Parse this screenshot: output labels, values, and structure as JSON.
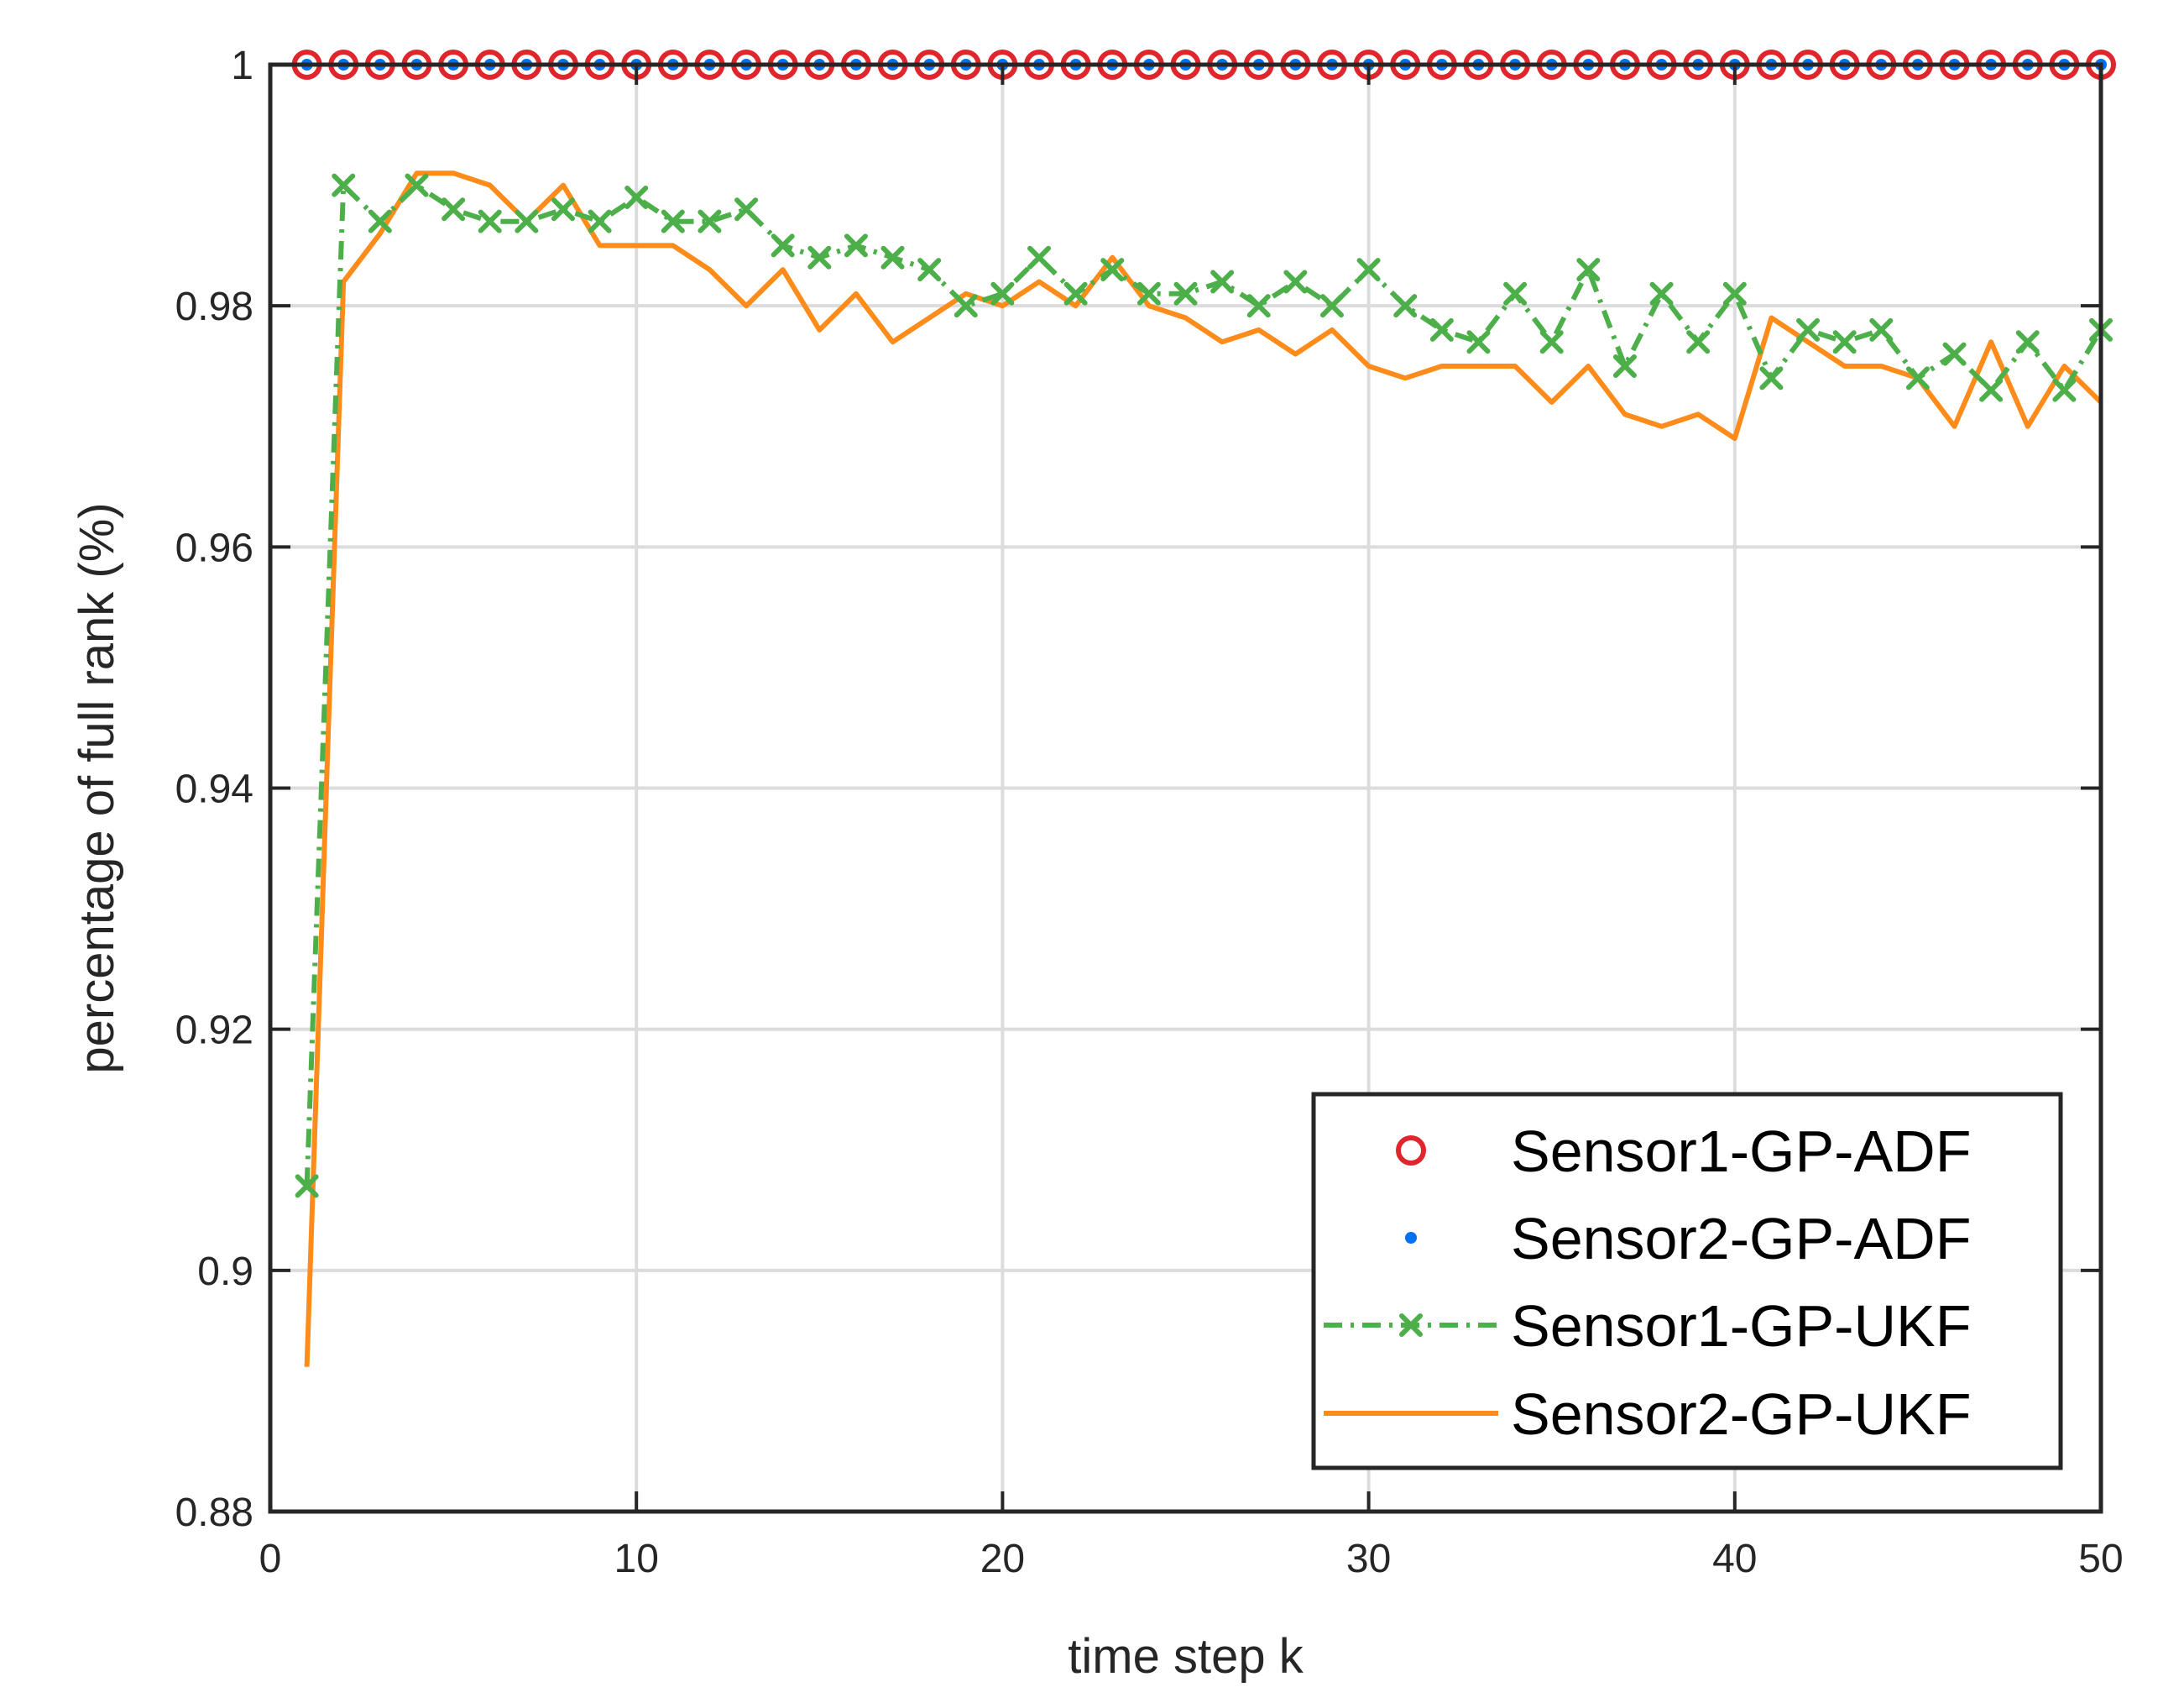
{
  "chart_data": {
    "type": "line",
    "title": "",
    "xlabel": "time step k",
    "ylabel": "percentage of full rank (%)",
    "xlim": [
      0,
      50
    ],
    "ylim": [
      0.88,
      1.0
    ],
    "xticks": [
      0,
      10,
      20,
      30,
      40,
      50
    ],
    "xtick_labels": [
      "0",
      "10",
      "20",
      "30",
      "40",
      "50"
    ],
    "yticks": [
      0.88,
      0.9,
      0.92,
      0.94,
      0.96,
      0.98,
      1.0
    ],
    "ytick_labels": [
      "0.88",
      "0.9",
      "0.92",
      "0.94",
      "0.96",
      "0.98",
      "1"
    ],
    "grid": true,
    "legend_position": "bottom-right",
    "x": [
      1,
      2,
      3,
      4,
      5,
      6,
      7,
      8,
      9,
      10,
      11,
      12,
      13,
      14,
      15,
      16,
      17,
      18,
      19,
      20,
      21,
      22,
      23,
      24,
      25,
      26,
      27,
      28,
      29,
      30,
      31,
      32,
      33,
      34,
      35,
      36,
      37,
      38,
      39,
      40,
      41,
      42,
      43,
      44,
      45,
      46,
      47,
      48,
      49,
      50
    ],
    "series": [
      {
        "name": "Sensor1-GP-ADF",
        "color": "#e0262d",
        "marker": "circle",
        "line": "none",
        "values": [
          1,
          1,
          1,
          1,
          1,
          1,
          1,
          1,
          1,
          1,
          1,
          1,
          1,
          1,
          1,
          1,
          1,
          1,
          1,
          1,
          1,
          1,
          1,
          1,
          1,
          1,
          1,
          1,
          1,
          1,
          1,
          1,
          1,
          1,
          1,
          1,
          1,
          1,
          1,
          1,
          1,
          1,
          1,
          1,
          1,
          1,
          1,
          1,
          1,
          1
        ]
      },
      {
        "name": "Sensor2-GP-ADF",
        "color": "#0072f0",
        "marker": "dot",
        "line": "none",
        "values": [
          1,
          1,
          1,
          1,
          1,
          1,
          1,
          1,
          1,
          1,
          1,
          1,
          1,
          1,
          1,
          1,
          1,
          1,
          1,
          1,
          1,
          1,
          1,
          1,
          1,
          1,
          1,
          1,
          1,
          1,
          1,
          1,
          1,
          1,
          1,
          1,
          1,
          1,
          1,
          1,
          1,
          1,
          1,
          1,
          1,
          1,
          1,
          1,
          1,
          1
        ]
      },
      {
        "name": "Sensor1-GP-UKF",
        "color": "#4daf4a",
        "marker": "x",
        "line": "dashdot",
        "values": [
          0.907,
          0.99,
          0.987,
          0.99,
          0.988,
          0.987,
          0.987,
          0.988,
          0.987,
          0.989,
          0.987,
          0.987,
          0.988,
          0.985,
          0.984,
          0.985,
          0.984,
          0.983,
          0.98,
          0.981,
          0.984,
          0.981,
          0.983,
          0.981,
          0.981,
          0.982,
          0.98,
          0.982,
          0.98,
          0.983,
          0.98,
          0.978,
          0.977,
          0.981,
          0.977,
          0.983,
          0.975,
          0.981,
          0.977,
          0.981,
          0.974,
          0.978,
          0.977,
          0.978,
          0.974,
          0.976,
          0.973,
          0.977,
          0.973,
          0.978
        ]
      },
      {
        "name": "Sensor2-GP-UKF",
        "color": "#ff8c1a",
        "marker": "none",
        "line": "solid",
        "values": [
          0.892,
          0.982,
          0.986,
          0.991,
          0.991,
          0.99,
          0.987,
          0.99,
          0.985,
          0.985,
          0.985,
          0.983,
          0.98,
          0.983,
          0.978,
          0.981,
          0.977,
          0.979,
          0.981,
          0.98,
          0.982,
          0.98,
          0.984,
          0.98,
          0.979,
          0.977,
          0.978,
          0.976,
          0.978,
          0.975,
          0.974,
          0.975,
          0.975,
          0.975,
          0.972,
          0.975,
          0.971,
          0.97,
          0.971,
          0.969,
          0.979,
          0.977,
          0.975,
          0.975,
          0.974,
          0.97,
          0.977,
          0.97,
          0.975,
          0.972
        ]
      }
    ]
  }
}
